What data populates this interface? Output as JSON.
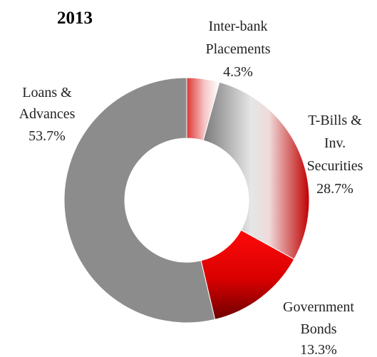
{
  "chart_data": {
    "type": "pie",
    "variant": "donut",
    "title": "2013",
    "slices": [
      {
        "label_lines": [
          "Inter-bank",
          "Placements"
        ],
        "value": 4.3,
        "value_label": "4.3%",
        "fill": "gradient-pink",
        "colors": [
          "#d42a2a",
          "#ffffff"
        ]
      },
      {
        "label_lines": [
          "T-Bills &",
          "Inv.",
          "Securities"
        ],
        "value": 28.7,
        "value_label": "28.7%",
        "fill": "gradient-grey-red",
        "colors": [
          "#7a7a7a",
          "#e8e8e8",
          "#c00000"
        ]
      },
      {
        "label_lines": [
          "Government",
          "Bonds"
        ],
        "value": 13.3,
        "value_label": "13.3%",
        "fill": "gradient-red",
        "colors": [
          "#ff0000",
          "#7a0000"
        ]
      },
      {
        "label_lines": [
          "Loans &",
          "Advances"
        ],
        "value": 53.7,
        "value_label": "53.7%",
        "fill": "solid",
        "colors": [
          "#8c8c8c"
        ]
      }
    ],
    "legend": "none",
    "start_angle_deg": 0,
    "direction": "clockwise"
  }
}
